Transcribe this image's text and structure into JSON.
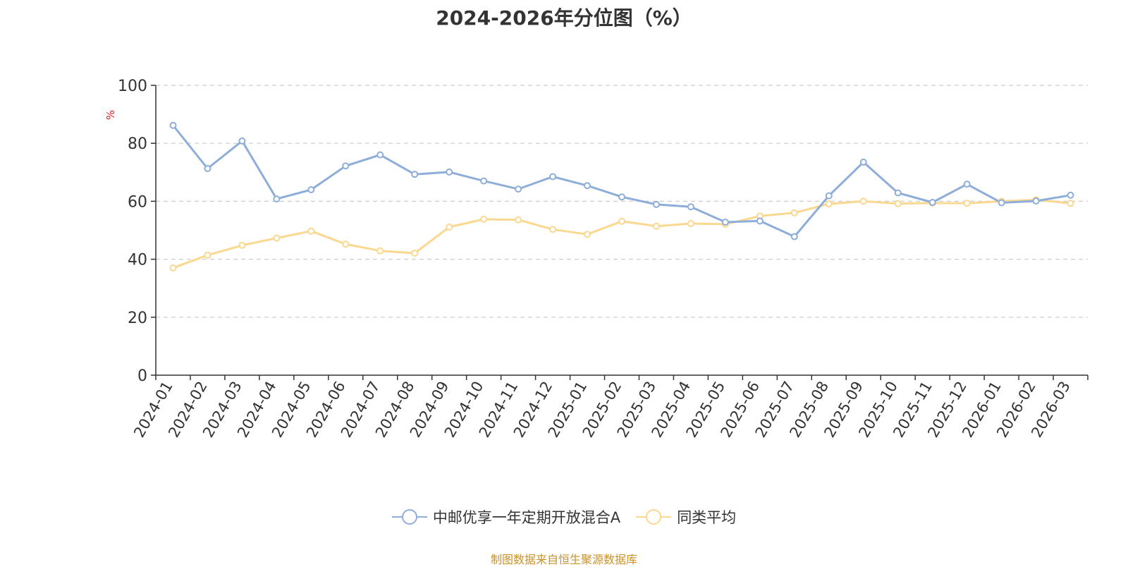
{
  "chart_data": {
    "type": "line",
    "title": "2024-2026年分位图（%）",
    "ylabel": "%",
    "xlabel": "",
    "ylim": [
      0,
      100
    ],
    "yticks": [
      "0",
      "20",
      "40",
      "60",
      "80",
      "100"
    ],
    "grid": true,
    "legend_position": "bottom",
    "categories": [
      "2024-01",
      "2024-02",
      "2024-03",
      "2024-04",
      "2024-05",
      "2024-06",
      "2024-07",
      "2024-08",
      "2024-09",
      "2024-10",
      "2024-11",
      "2024-12",
      "2025-01",
      "2025-02",
      "2025-03",
      "2025-04",
      "2025-05",
      "2025-06",
      "2025-07",
      "2025-08",
      "2025-09",
      "2025-10",
      "2025-11",
      "2025-12",
      "2026-01",
      "2026-02",
      "2026-03"
    ],
    "series": [
      {
        "name": "中邮优享一年定期开放混合A",
        "color": "#8eaed9",
        "values": [
          86.2,
          71.3,
          80.8,
          60.8,
          64.0,
          72.2,
          76.0,
          69.3,
          70.1,
          67.0,
          64.2,
          68.5,
          65.4,
          61.5,
          58.9,
          58.1,
          52.8,
          53.2,
          47.8,
          61.9,
          73.5,
          62.9,
          59.6,
          65.9,
          59.5,
          60.1,
          62.1
        ]
      },
      {
        "name": "同类平均",
        "color": "#fbd890",
        "values": [
          37.0,
          41.4,
          44.8,
          47.3,
          49.7,
          45.2,
          42.9,
          42.1,
          51.1,
          53.8,
          53.6,
          50.3,
          48.6,
          53.1,
          51.4,
          52.3,
          52.1,
          54.9,
          56.0,
          59.1,
          60.0,
          59.2,
          59.4,
          59.3,
          60.0,
          60.5,
          59.3
        ]
      }
    ]
  },
  "source_text": "制图数据来自恒生聚源数据库"
}
